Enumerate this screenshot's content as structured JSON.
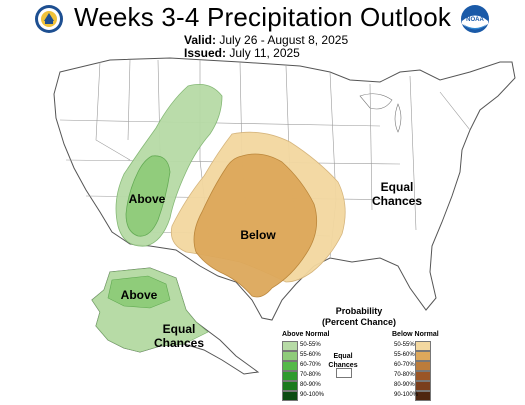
{
  "header": {
    "title": "Weeks 3-4 Precipitation Outlook",
    "valid_label": "Valid:",
    "valid_value": "July 26 - August 8, 2025",
    "issued_label": "Issued:",
    "issued_value": "July 11, 2025"
  },
  "logos": {
    "left": "doc-seal-icon",
    "right": "noaa-logo-icon",
    "noaa_text": "NOAA"
  },
  "map_labels": {
    "west": "Above",
    "central": "Below",
    "east": "Equal\nChances",
    "alaska_above": "Above",
    "alaska_ec": "Equal\nChances"
  },
  "legend": {
    "title": "Probability\n(Percent Chance)",
    "above_head": "Above Normal",
    "below_head": "Below Normal",
    "equal_label": "Equal\nChances",
    "above": [
      {
        "label": "50-55%",
        "color": "#b7dba6"
      },
      {
        "label": "55-60%",
        "color": "#8fcc7a"
      },
      {
        "label": "60-70%",
        "color": "#55b94a"
      },
      {
        "label": "70-80%",
        "color": "#2f9a2e"
      },
      {
        "label": "80-90%",
        "color": "#1c7a1e"
      },
      {
        "label": "90-100%",
        "color": "#0c4d12"
      }
    ],
    "below": [
      {
        "label": "50-55%",
        "color": "#f3d8a0"
      },
      {
        "label": "55-60%",
        "color": "#dda85b"
      },
      {
        "label": "60-70%",
        "color": "#bb7c3b"
      },
      {
        "label": "70-80%",
        "color": "#9a5526"
      },
      {
        "label": "80-90%",
        "color": "#7a3e1c"
      },
      {
        "label": "90-100%",
        "color": "#4e2610"
      }
    ],
    "equal_color": "#ffffff"
  },
  "colors": {
    "above_light": "#b7dba6",
    "above_mid": "#8fcc7a",
    "below_light": "#f3d8a0",
    "below_mid": "#dda85b"
  }
}
